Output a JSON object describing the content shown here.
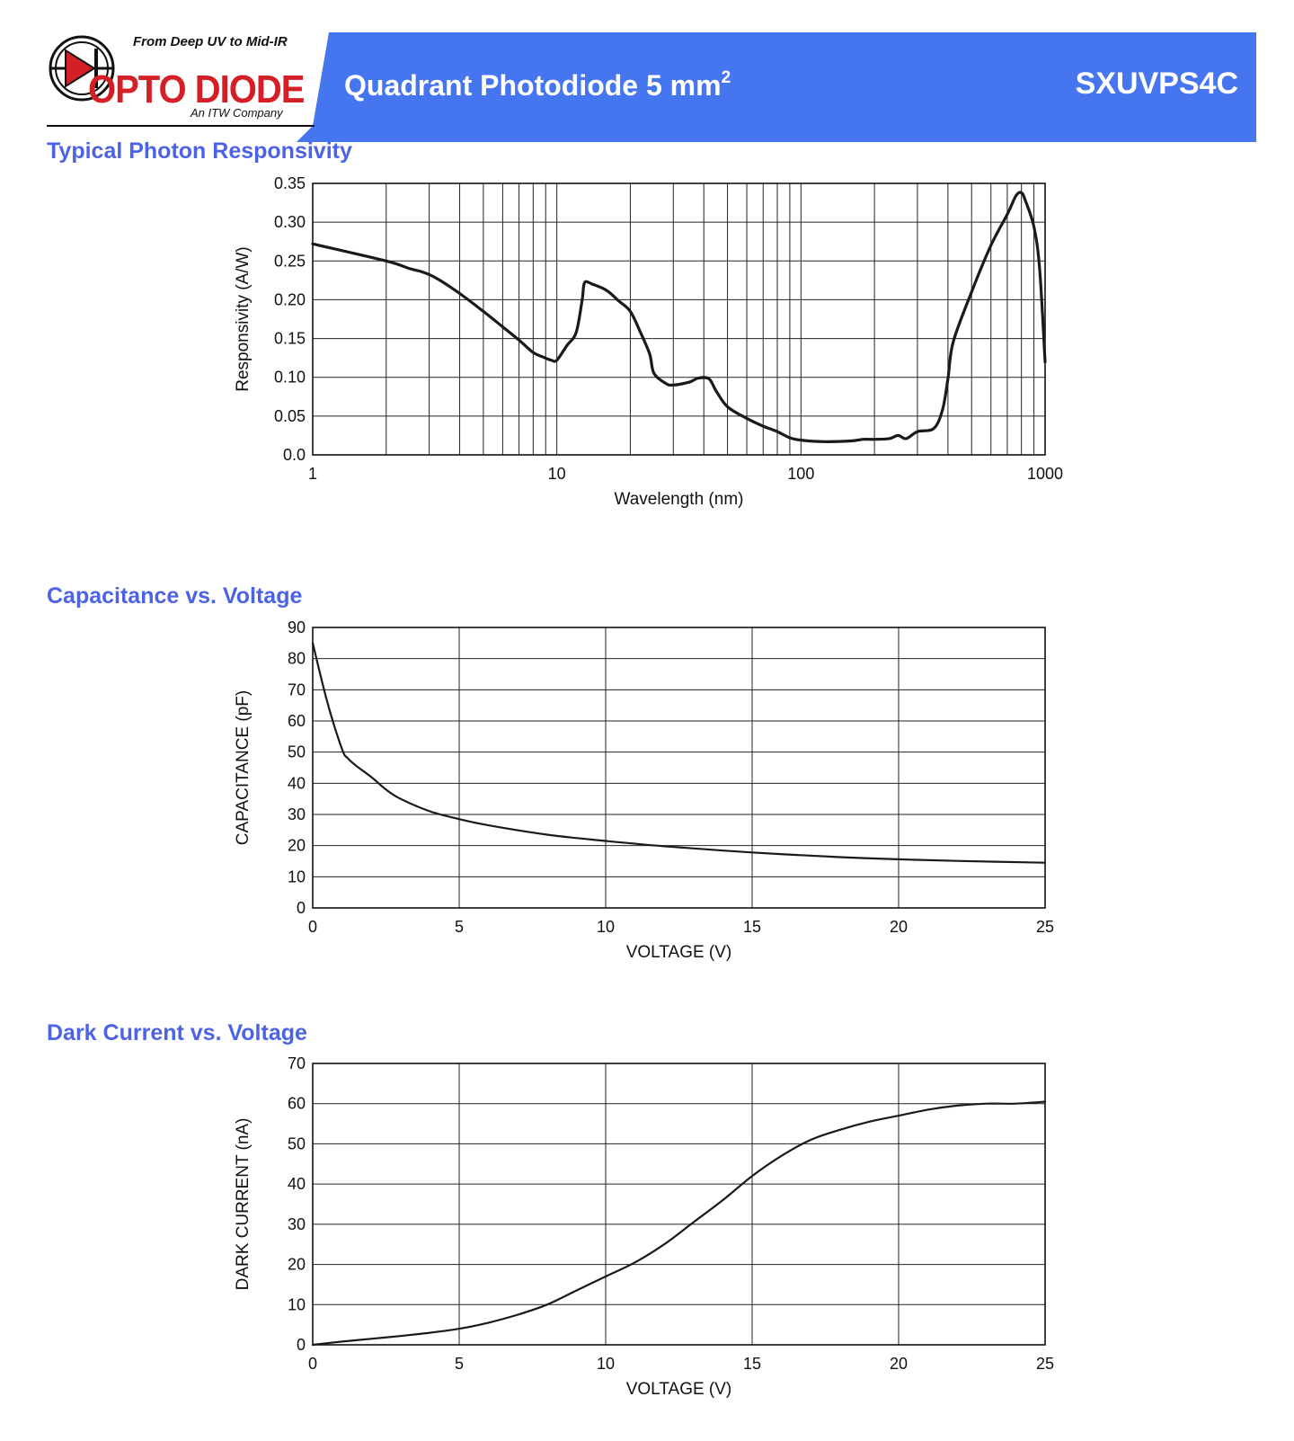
{
  "header": {
    "tagline": "From Deep UV to Mid-IR",
    "brand_name": "OPTO DIODE",
    "brand_sub": "An ITW Company",
    "product_title": "Quadrant Photodiode 5 mm",
    "product_title_sup": "2",
    "part_number": "SXUVPS4C",
    "band_color": "#4675f0",
    "logo_red": "#d51f26",
    "icons": [
      "diode-logo-icon"
    ]
  },
  "sections": {
    "responsivity_title": "Typical Photon Responsivity",
    "capacitance_title": "Capacitance vs. Voltage",
    "dark_current_title": "Dark Current vs. Voltage"
  },
  "chart_data": [
    {
      "type": "line",
      "xlabel": "Wavelength (nm)",
      "ylabel": "Responsivity (A/W)",
      "xscale": "log",
      "xlim": [
        1,
        1000
      ],
      "ylim": [
        0,
        0.35
      ],
      "xticks": [
        1,
        10,
        100,
        1000
      ],
      "xtick_labels": [
        "1",
        "10",
        "100",
        "1000"
      ],
      "yticks": [
        0,
        0.05,
        0.1,
        0.15,
        0.2,
        0.25,
        0.3,
        0.35
      ],
      "ytick_labels": [
        "0.0",
        "0.05",
        "0.10",
        "0.15",
        "0.20",
        "0.25",
        "0.30",
        "0.35"
      ],
      "grid": true,
      "line_color": "#1a1a1a",
      "series": [
        {
          "x": [
            1,
            2,
            2.5,
            2.8,
            3.2,
            4,
            5,
            6,
            7,
            8,
            8.8,
            9.5,
            10,
            11,
            12,
            12.7,
            13,
            14,
            16,
            18,
            20,
            22,
            24,
            25,
            28,
            30,
            35,
            38,
            42,
            45,
            50,
            60,
            70,
            80,
            90,
            100,
            125,
            160,
            180,
            200,
            230,
            250,
            270,
            300,
            350,
            380,
            400,
            420,
            500,
            600,
            700,
            760,
            800,
            830,
            900,
            950,
            1000
          ],
          "y": [
            0.272,
            0.25,
            0.24,
            0.236,
            0.228,
            0.208,
            0.185,
            0.165,
            0.148,
            0.132,
            0.126,
            0.122,
            0.122,
            0.141,
            0.158,
            0.2,
            0.222,
            0.22,
            0.212,
            0.198,
            0.185,
            0.158,
            0.13,
            0.105,
            0.092,
            0.09,
            0.094,
            0.099,
            0.098,
            0.082,
            0.062,
            0.047,
            0.037,
            0.03,
            0.022,
            0.019,
            0.017,
            0.018,
            0.02,
            0.02,
            0.021,
            0.025,
            0.021,
            0.03,
            0.034,
            0.058,
            0.098,
            0.145,
            0.21,
            0.27,
            0.31,
            0.334,
            0.338,
            0.328,
            0.294,
            0.24,
            0.12
          ]
        }
      ]
    },
    {
      "type": "line",
      "xlabel": "VOLTAGE (V)",
      "ylabel": "CAPACITANCE (pF)",
      "xlim": [
        0,
        25
      ],
      "ylim": [
        0,
        90
      ],
      "xticks": [
        0,
        5,
        10,
        15,
        20,
        25
      ],
      "yticks": [
        0,
        10,
        20,
        30,
        40,
        50,
        60,
        70,
        80,
        90
      ],
      "grid": true,
      "line_color": "#1a1a1a",
      "series": [
        {
          "x": [
            0,
            0.5,
            1,
            1.2,
            1.5,
            2,
            2.5,
            3,
            4,
            5,
            6,
            8,
            10,
            12,
            15,
            18,
            20,
            22,
            25
          ],
          "y": [
            85,
            66,
            51,
            48,
            45.5,
            42,
            38,
            35,
            31,
            28.5,
            26.5,
            23.5,
            21.5,
            19.8,
            17.8,
            16.3,
            15.6,
            15.1,
            14.5
          ]
        }
      ]
    },
    {
      "type": "line",
      "xlabel": "VOLTAGE (V)",
      "ylabel": "DARK CURRENT (nA)",
      "xlim": [
        0,
        25
      ],
      "ylim": [
        0,
        70
      ],
      "xticks": [
        0,
        5,
        10,
        15,
        20,
        25
      ],
      "yticks": [
        0,
        10,
        20,
        30,
        40,
        50,
        60,
        70
      ],
      "grid": true,
      "line_color": "#1a1a1a",
      "series": [
        {
          "x": [
            0,
            1,
            2,
            3,
            4,
            5,
            6,
            7,
            8,
            9,
            10,
            11,
            12,
            13,
            14,
            15,
            16,
            17,
            18,
            19,
            20,
            21,
            22,
            23,
            24,
            25
          ],
          "y": [
            0,
            0.8,
            1.5,
            2.2,
            3,
            4,
            5.5,
            7.5,
            10,
            13.5,
            17,
            20.5,
            25,
            30.5,
            36,
            42,
            47,
            51,
            53.5,
            55.5,
            57,
            58.5,
            59.5,
            60,
            60,
            60.5
          ]
        }
      ]
    }
  ]
}
